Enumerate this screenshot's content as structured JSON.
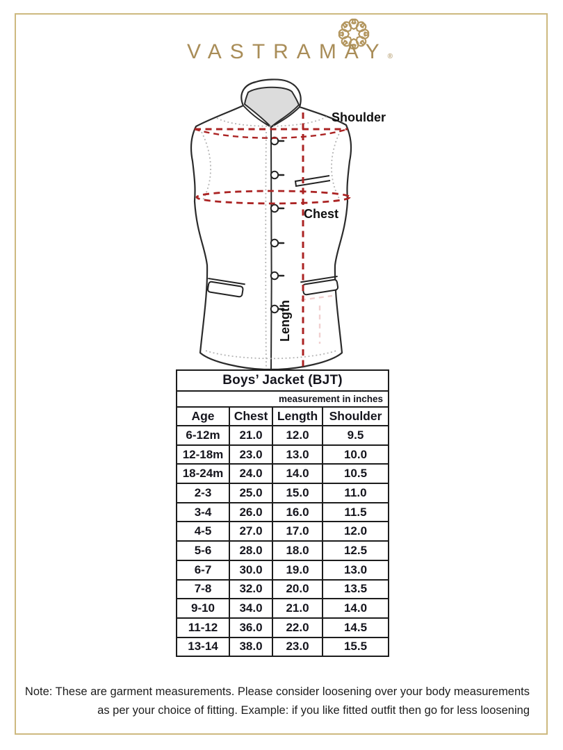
{
  "brand": {
    "name": "VASTRAMAY",
    "registered_mark": "®",
    "ornament_icon": "floral-mandala-icon"
  },
  "diagram": {
    "shoulder_label": "Shoulder",
    "chest_label": "Chest",
    "length_label": "Length"
  },
  "size_chart": {
    "title": "Boys’ Jacket (BJT)",
    "unit_note": "measurement in inches",
    "columns": [
      "Age",
      "Chest",
      "Length",
      "Shoulder"
    ],
    "rows": [
      [
        "6-12m",
        "21.0",
        "12.0",
        "9.5"
      ],
      [
        "12-18m",
        "23.0",
        "13.0",
        "10.0"
      ],
      [
        "18-24m",
        "24.0",
        "14.0",
        "10.5"
      ],
      [
        "2-3",
        "25.0",
        "15.0",
        "11.0"
      ],
      [
        "3-4",
        "26.0",
        "16.0",
        "11.5"
      ],
      [
        "4-5",
        "27.0",
        "17.0",
        "12.0"
      ],
      [
        "5-6",
        "28.0",
        "18.0",
        "12.5"
      ],
      [
        "6-7",
        "30.0",
        "19.0",
        "13.0"
      ],
      [
        "7-8",
        "32.0",
        "20.0",
        "13.5"
      ],
      [
        "9-10",
        "34.0",
        "21.0",
        "14.0"
      ],
      [
        "11-12",
        "36.0",
        "22.0",
        "14.5"
      ],
      [
        "13-14",
        "38.0",
        "23.0",
        "15.5"
      ]
    ]
  },
  "note": {
    "line1": "Note: These are garment measurements. Please consider loosening over your body measurements",
    "line2": "as per your choice of fitting. Example: if you like fitted outfit then go for less loosening"
  },
  "colors": {
    "brand_gold": "#a98d58",
    "frame_gold": "#cdb97f",
    "measure_red": "#ab2323",
    "table_ink": "#15151d"
  }
}
